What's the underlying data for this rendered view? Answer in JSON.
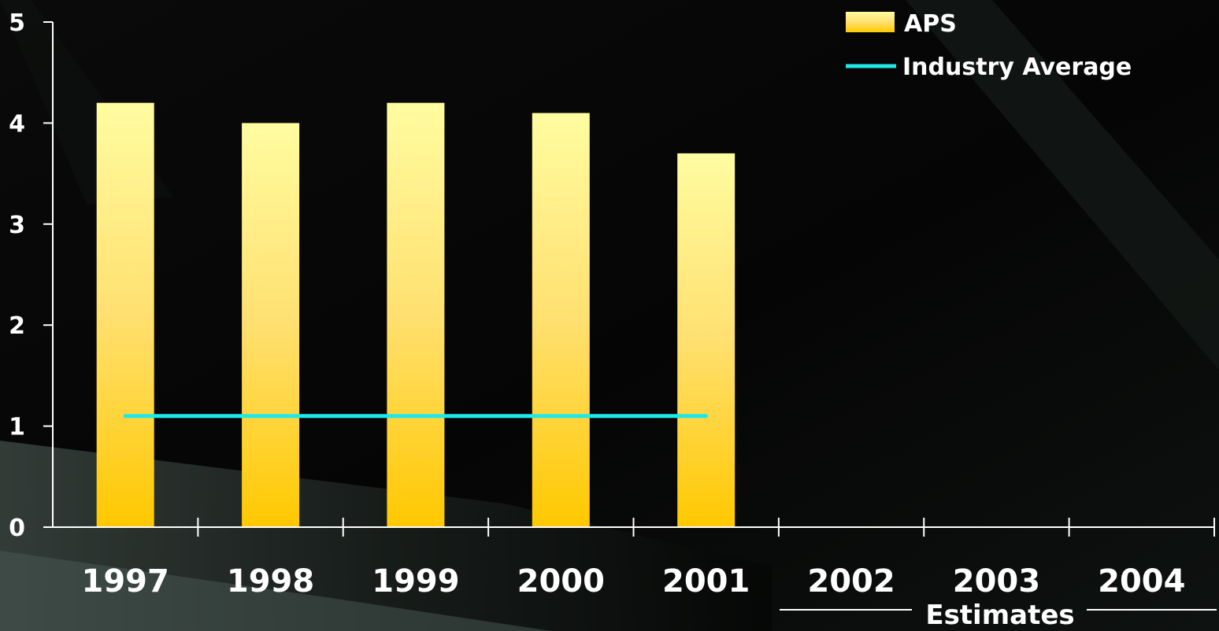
{
  "chart_data": {
    "type": "bar",
    "categories": [
      "1997",
      "1998",
      "1999",
      "2000",
      "2001",
      "2002",
      "2003",
      "2004"
    ],
    "series": [
      {
        "name": "APS",
        "kind": "bar",
        "values": [
          4.2,
          4.0,
          4.2,
          4.1,
          3.7,
          null,
          null,
          null
        ]
      },
      {
        "name": "Industry Average",
        "kind": "line",
        "values": [
          1.1,
          1.1,
          1.1,
          1.1,
          1.1,
          null,
          null,
          null
        ]
      }
    ],
    "yticks": [
      0,
      1,
      2,
      3,
      4,
      5
    ],
    "ylim": [
      0,
      5
    ],
    "grid": false,
    "legend_position": "top-right",
    "estimates_label": "Estimates",
    "colors": {
      "bar_top": "#fffca0",
      "bar_bottom": "#ffc800",
      "line": "#20e8e8",
      "axis": "#ffffff",
      "background": "#000000"
    }
  }
}
